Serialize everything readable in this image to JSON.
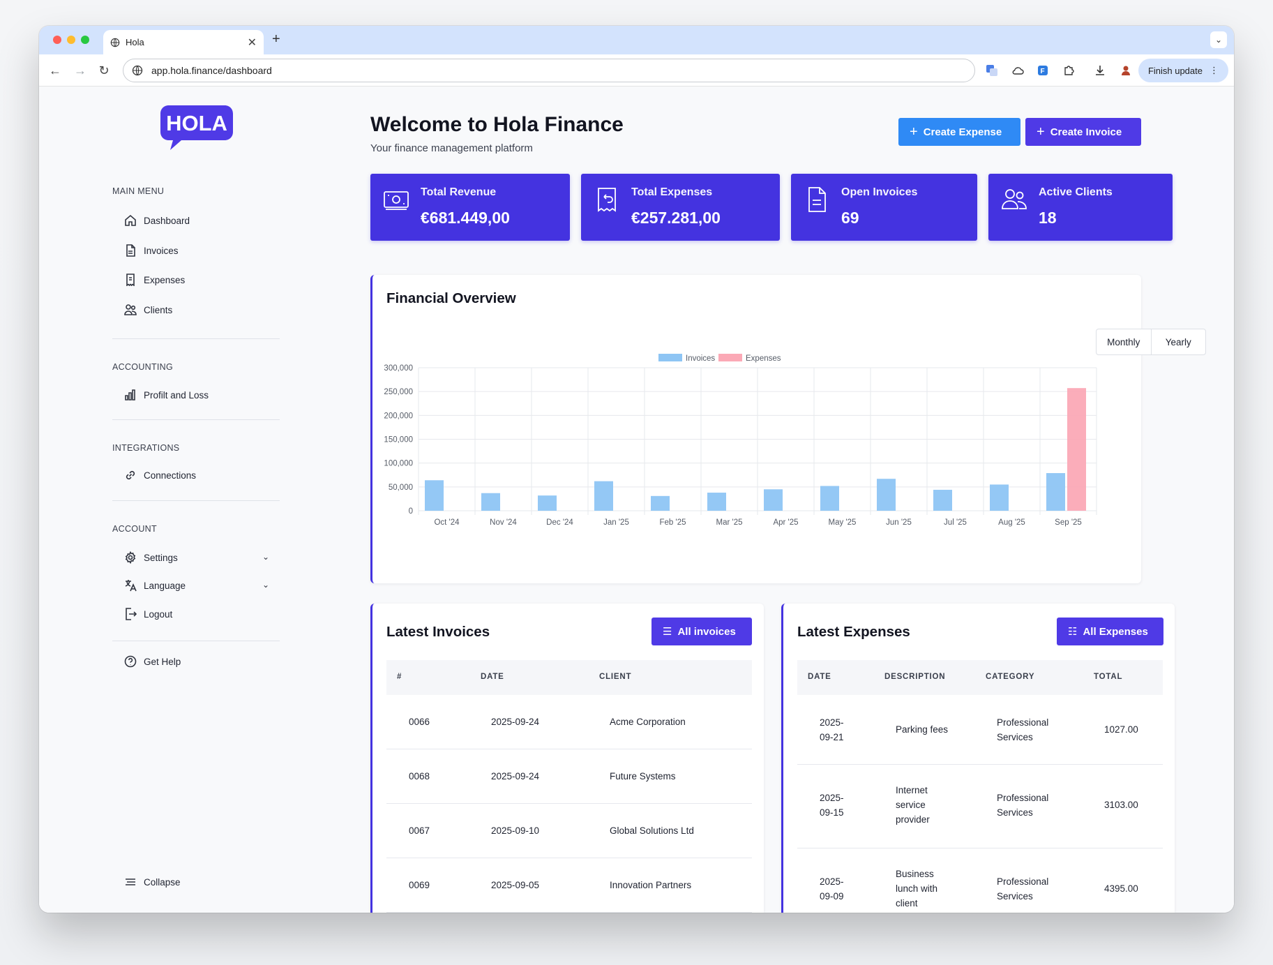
{
  "browser": {
    "tab_title": "Hola",
    "url": "app.hola.finance/dashboard",
    "finish_update": "Finish update"
  },
  "sidebar": {
    "logo_text": "HOLA",
    "sections": {
      "main": "MAIN MENU",
      "accounting": "ACCOUNTING",
      "integrations": "INTEGRATIONS",
      "account": "ACCOUNT"
    },
    "items": {
      "dashboard": "Dashboard",
      "invoices": "Invoices",
      "expenses": "Expenses",
      "clients": "Clients",
      "profit_loss": "Profilt and Loss",
      "connections": "Connections",
      "settings": "Settings",
      "language": "Language",
      "logout": "Logout",
      "help": "Get Help",
      "collapse": "Collapse"
    }
  },
  "header": {
    "title": "Welcome to Hola Finance",
    "subtitle": "Your finance management platform",
    "create_expense": "Create Expense",
    "create_invoice": "Create Invoice"
  },
  "stats": [
    {
      "label": "Total Revenue",
      "value": "€681.449,00"
    },
    {
      "label": "Total Expenses",
      "value": "€257.281,00"
    },
    {
      "label": "Open Invoices",
      "value": "69"
    },
    {
      "label": "Active Clients",
      "value": "18"
    }
  ],
  "overview": {
    "title": "Financial Overview",
    "monthly": "Monthly",
    "yearly": "Yearly"
  },
  "chart_data": {
    "type": "bar",
    "categories": [
      "Oct '24",
      "Nov '24",
      "Dec '24",
      "Jan '25",
      "Feb '25",
      "Mar '25",
      "Apr '25",
      "May '25",
      "Jun '25",
      "Jul '25",
      "Aug '25",
      "Sep '25"
    ],
    "series": [
      {
        "name": "Invoices",
        "color": "#8ec5f4",
        "values": [
          64000,
          37000,
          32000,
          62000,
          31000,
          38000,
          45000,
          52000,
          67000,
          44000,
          55000,
          79000
        ]
      },
      {
        "name": "Expenses",
        "color": "#fba9b6",
        "values": [
          0,
          0,
          0,
          0,
          0,
          0,
          0,
          0,
          0,
          0,
          0,
          257281
        ]
      }
    ],
    "yticks": [
      "300,000",
      "250,000",
      "200,000",
      "150,000",
      "100,000",
      "50,000",
      "0"
    ],
    "ylim": [
      0,
      300000
    ],
    "legend": "top-center",
    "grid": true
  },
  "invoices": {
    "title": "Latest Invoices",
    "button": "All invoices",
    "headers": [
      "#",
      "DATE",
      "CLIENT"
    ],
    "rows": [
      {
        "num": "0066",
        "date": "2025-09-24",
        "client": "Acme Corporation"
      },
      {
        "num": "0068",
        "date": "2025-09-24",
        "client": "Future Systems"
      },
      {
        "num": "0067",
        "date": "2025-09-10",
        "client": "Global Solutions Ltd"
      },
      {
        "num": "0069",
        "date": "2025-09-05",
        "client": "Innovation Partners"
      }
    ]
  },
  "expenses": {
    "title": "Latest Expenses",
    "button": "All Expenses",
    "headers": [
      "DATE",
      "DESCRIPTION",
      "CATEGORY",
      "TOTAL"
    ],
    "rows": [
      {
        "date_a": "2025-",
        "date_b": "09-21",
        "desc": [
          "Parking fees"
        ],
        "cat_a": "Professional",
        "cat_b": "Services",
        "total": "1027.00"
      },
      {
        "date_a": "2025-",
        "date_b": "09-15",
        "desc": [
          "Internet",
          "service",
          "provider"
        ],
        "cat_a": "Professional",
        "cat_b": "Services",
        "total": "3103.00"
      },
      {
        "date_a": "2025-",
        "date_b": "09-09",
        "desc": [
          "Business",
          "lunch with",
          "client"
        ],
        "cat_a": "Professional",
        "cat_b": "Services",
        "total": "4395.00"
      }
    ]
  }
}
